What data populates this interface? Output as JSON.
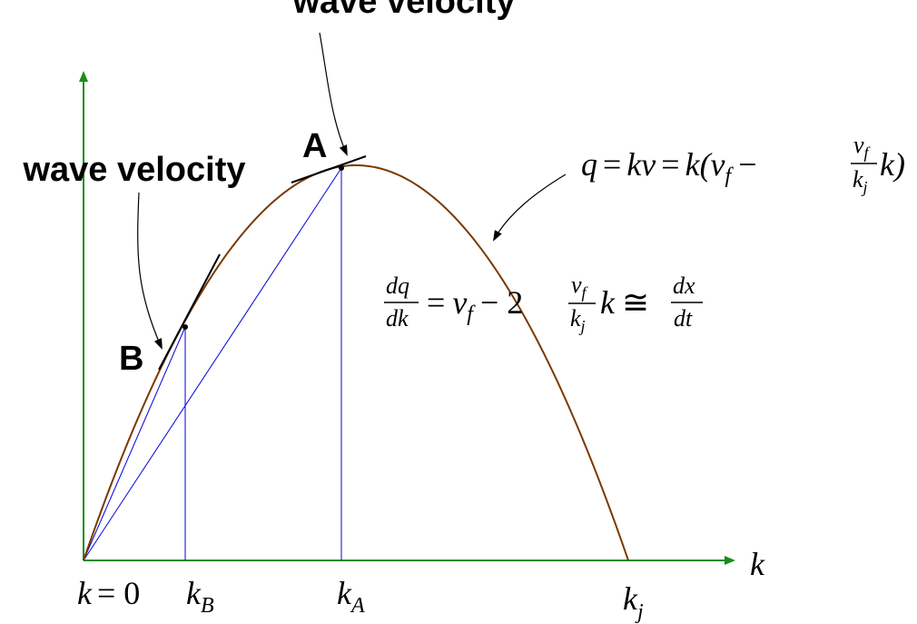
{
  "labels": {
    "wave_velocity_top": "wave velocity",
    "wave_velocity_left": "wave velocity",
    "point_a": "A",
    "point_b": "B",
    "axis_k": "k",
    "tick_k0_var": "k",
    "tick_k0_rest": "= 0",
    "tick_kb_var": "k",
    "tick_kb_sub": "B",
    "tick_ka_var": "k",
    "tick_ka_sub": "A",
    "tick_kj_var": "k",
    "tick_kj_sub": "j"
  },
  "equations": {
    "flow": {
      "q": "q",
      "eq1": "=",
      "kv": "kv",
      "eq2": "=",
      "k_open": "k(v",
      "f_sub": "f",
      "minus": "−",
      "frac_num_v": "v",
      "frac_num_f": "f",
      "frac_den_k": "k",
      "frac_den_j": "j",
      "close": "k)"
    },
    "derivative": {
      "dq": "dq",
      "dk": "dk",
      "eq": "=",
      "v": "v",
      "f_sub": "f",
      "minus_two": "− 2",
      "frac_num_v": "v",
      "frac_num_f": "f",
      "frac_den_k": "k",
      "frac_den_j": "j",
      "k_after": "k",
      "approx": "≅",
      "dx": "dx",
      "dt": "dt"
    }
  },
  "colors": {
    "axis": "#1a8c1a",
    "curve": "#7a3a00",
    "guide": "#0000dd",
    "tangent": "#000000"
  },
  "curve": {
    "k_max": 1,
    "q_peak_at_k": 0.5,
    "k_b": 0.187,
    "k_a": 0.475
  }
}
